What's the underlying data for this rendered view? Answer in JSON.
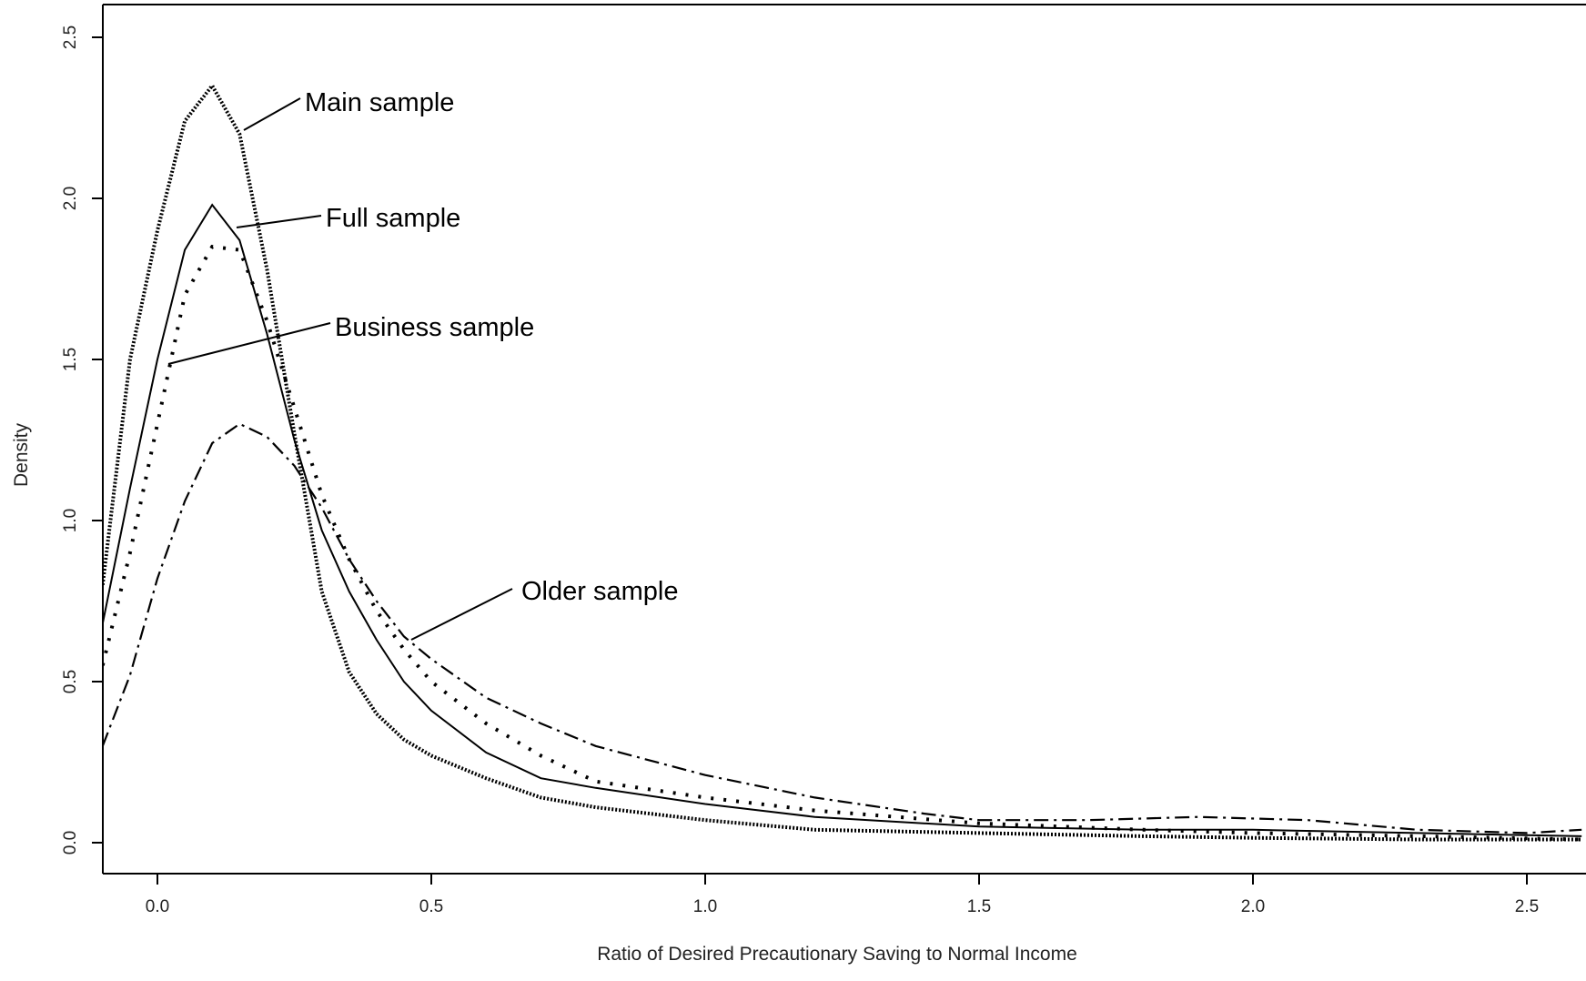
{
  "chart_data": {
    "type": "line",
    "title": "",
    "xlabel": "Ratio of Desired Precautionary Saving to Normal Income",
    "ylabel": "Density",
    "xlim": [
      -0.1,
      2.6
    ],
    "ylim": [
      -0.1,
      2.6
    ],
    "xticks": [
      "0.0",
      "0.5",
      "1.0",
      "1.5",
      "2.0",
      "2.5"
    ],
    "yticks": [
      "0.0",
      "0.5",
      "1.0",
      "1.5",
      "2.0",
      "2.5"
    ],
    "grid": false,
    "legend": "none",
    "series": [
      {
        "name": "Main sample",
        "style": "dotted-heavy",
        "x": [
          -0.1,
          -0.05,
          0.0,
          0.05,
          0.1,
          0.15,
          0.2,
          0.25,
          0.3,
          0.35,
          0.4,
          0.45,
          0.5,
          0.6,
          0.7,
          0.8,
          1.0,
          1.2,
          1.5,
          1.8,
          2.0,
          2.3,
          2.6
        ],
        "y": [
          0.8,
          1.5,
          1.9,
          2.24,
          2.35,
          2.2,
          1.78,
          1.27,
          0.78,
          0.53,
          0.4,
          0.32,
          0.27,
          0.2,
          0.14,
          0.11,
          0.07,
          0.04,
          0.03,
          0.02,
          0.015,
          0.01,
          0.01
        ]
      },
      {
        "name": "Full sample",
        "style": "solid",
        "x": [
          -0.1,
          -0.05,
          0.0,
          0.05,
          0.1,
          0.15,
          0.2,
          0.25,
          0.3,
          0.35,
          0.4,
          0.45,
          0.5,
          0.6,
          0.7,
          0.8,
          1.0,
          1.2,
          1.5,
          1.8,
          2.0,
          2.3,
          2.6
        ],
        "y": [
          0.68,
          1.1,
          1.5,
          1.84,
          1.98,
          1.87,
          1.58,
          1.25,
          0.97,
          0.78,
          0.63,
          0.5,
          0.41,
          0.28,
          0.2,
          0.17,
          0.12,
          0.08,
          0.05,
          0.04,
          0.04,
          0.03,
          0.02
        ]
      },
      {
        "name": "Business sample",
        "style": "dotted",
        "x": [
          -0.1,
          -0.05,
          0.0,
          0.05,
          0.1,
          0.15,
          0.2,
          0.25,
          0.3,
          0.35,
          0.4,
          0.45,
          0.5,
          0.6,
          0.7,
          0.8,
          1.0,
          1.2,
          1.5,
          1.8,
          2.0,
          2.3,
          2.6
        ],
        "y": [
          0.55,
          0.9,
          1.3,
          1.7,
          1.85,
          1.84,
          1.62,
          1.35,
          1.08,
          0.88,
          0.72,
          0.6,
          0.5,
          0.37,
          0.27,
          0.19,
          0.14,
          0.1,
          0.06,
          0.04,
          0.03,
          0.02,
          0.01
        ]
      },
      {
        "name": "Older sample",
        "style": "dash-dot",
        "x": [
          -0.1,
          -0.05,
          0.0,
          0.05,
          0.1,
          0.15,
          0.2,
          0.25,
          0.3,
          0.35,
          0.4,
          0.45,
          0.5,
          0.6,
          0.7,
          0.8,
          1.0,
          1.2,
          1.4,
          1.5,
          1.7,
          1.9,
          2.1,
          2.3,
          2.5,
          2.6
        ],
        "y": [
          0.3,
          0.52,
          0.82,
          1.06,
          1.24,
          1.3,
          1.26,
          1.17,
          1.04,
          0.88,
          0.75,
          0.64,
          0.57,
          0.45,
          0.37,
          0.3,
          0.21,
          0.14,
          0.09,
          0.07,
          0.07,
          0.08,
          0.07,
          0.04,
          0.03,
          0.04
        ]
      }
    ],
    "annotations": [
      {
        "text": "Main sample",
        "target_series": "Main sample"
      },
      {
        "text": "Full sample",
        "target_series": "Full sample"
      },
      {
        "text": "Business sample",
        "target_series": "Business sample"
      },
      {
        "text": "Older sample",
        "target_series": "Older sample"
      }
    ]
  }
}
